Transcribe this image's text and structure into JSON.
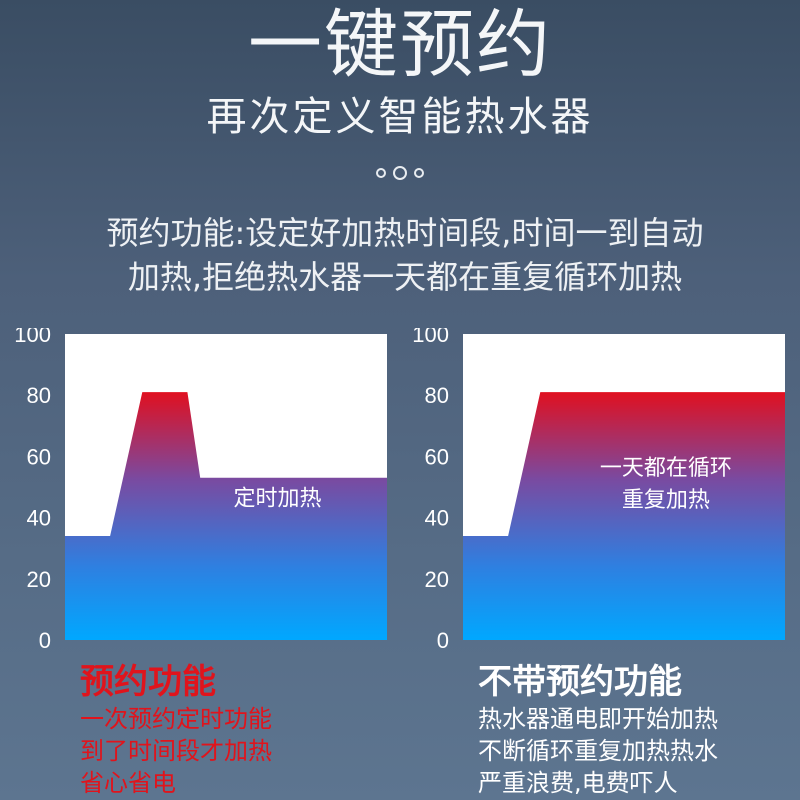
{
  "header": {
    "title": "一键预约",
    "subtitle": "再次定义智能热水器"
  },
  "description": {
    "line1": "预约功能:设定好加热时间段,时间一到自动",
    "line2": "加热,拒绝热水器一天都在重复循环加热"
  },
  "chart_data": [
    {
      "type": "area",
      "y_ticks": [
        "100",
        "80",
        "60",
        "40",
        "20",
        "0"
      ],
      "ylim": [
        0,
        100
      ],
      "inner_label": "定时加热",
      "points": [
        [
          0,
          34
        ],
        [
          0.14,
          34
        ],
        [
          0.24,
          81
        ],
        [
          0.38,
          81
        ],
        [
          0.42,
          53
        ],
        [
          1,
          53
        ]
      ]
    },
    {
      "type": "area",
      "y_ticks": [
        "100",
        "80",
        "60",
        "40",
        "20",
        "0"
      ],
      "ylim": [
        0,
        100
      ],
      "inner_label": [
        "一天都在循环",
        "重复加热"
      ],
      "points": [
        [
          0,
          34
        ],
        [
          0.14,
          34
        ],
        [
          0.24,
          81
        ],
        [
          1,
          81
        ]
      ]
    }
  ],
  "captions": {
    "left": {
      "title": "预约功能",
      "lines": [
        "一次预约定时功能",
        "到了时间段才加热",
        "省心省电"
      ],
      "color": "#e0141c"
    },
    "right": {
      "title": "不带预约功能",
      "lines": [
        "热水器通电即开始加热",
        "不断循环重复加热热水",
        "严重浪费,电费吓人"
      ],
      "color": "#ffffff"
    }
  },
  "colors": {
    "hot": "#e01020",
    "warm": "#7a4aa0",
    "cool": "#2f7fe0",
    "cold": "#00a8ff",
    "plot_bg": "#ffffff"
  }
}
